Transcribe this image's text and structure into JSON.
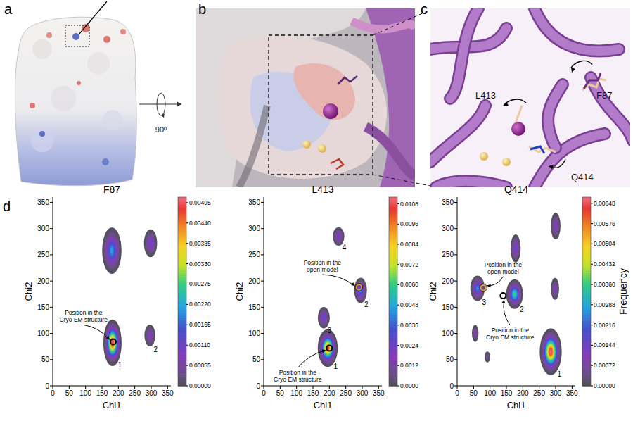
{
  "figure": {
    "panel_labels": [
      "a",
      "b",
      "c",
      "d"
    ],
    "residue_labels": [
      "F87",
      "L413",
      "Q414"
    ],
    "rotation_label": "90º"
  },
  "chart_data": [
    {
      "type": "density",
      "title": "F87",
      "x_label": "Chi1",
      "y_label": "Chi2",
      "xlim": [
        0,
        360
      ],
      "ylim": [
        0,
        360
      ],
      "xticks": [
        0,
        50,
        100,
        150,
        200,
        250,
        300,
        350
      ],
      "yticks": [
        0,
        50,
        100,
        150,
        200,
        250,
        300,
        350
      ],
      "clusters": [
        {
          "label": "1",
          "x": 182,
          "y": 82,
          "sx": 10,
          "sy": 16,
          "peak": 0.0049
        },
        {
          "label": null,
          "x": 180,
          "y": 258,
          "sx": 12,
          "sy": 18,
          "peak": 0.0021
        },
        {
          "label": null,
          "x": 298,
          "y": 272,
          "sx": 9,
          "sy": 12,
          "peak": 0.0012
        },
        {
          "label": "2",
          "x": 296,
          "y": 96,
          "sx": 8,
          "sy": 10,
          "peak": 0.0009
        }
      ],
      "points": [
        {
          "lines": [
            "Position in the",
            "Cryo EM structure"
          ],
          "x": 184,
          "y": 84,
          "color": "#000000"
        }
      ],
      "colorbar": {
        "range": [
          0,
          0.0051
        ],
        "ticks": [
          {
            "value": 0,
            "label": "0.00000"
          },
          {
            "value": 0.00055,
            "label": "0.00055"
          },
          {
            "value": 0.0011,
            "label": "0.00110"
          },
          {
            "value": 0.00165,
            "label": "0.00165"
          },
          {
            "value": 0.0022,
            "label": "0.00220"
          },
          {
            "value": 0.00275,
            "label": "0.00275"
          },
          {
            "value": 0.0033,
            "label": "0.00330"
          },
          {
            "value": 0.00385,
            "label": "0.00385"
          },
          {
            "value": 0.0044,
            "label": "0.00440"
          },
          {
            "value": 0.00495,
            "label": "0.00495"
          }
        ]
      }
    },
    {
      "type": "density",
      "title": "L413",
      "x_label": "Chi1",
      "y_label": "Chi2",
      "xlim": [
        0,
        360
      ],
      "ylim": [
        0,
        360
      ],
      "xticks": [
        0,
        50,
        100,
        150,
        200,
        250,
        300,
        350
      ],
      "yticks": [
        0,
        50,
        100,
        150,
        200,
        250,
        300,
        350
      ],
      "clusters": [
        {
          "label": "1",
          "x": 195,
          "y": 72,
          "sx": 11,
          "sy": 13,
          "peak": 0.0104
        },
        {
          "label": "2",
          "x": 295,
          "y": 182,
          "sx": 8,
          "sy": 10,
          "peak": 0.0042
        },
        {
          "label": "3",
          "x": 183,
          "y": 130,
          "sx": 8,
          "sy": 9,
          "peak": 0.003
        },
        {
          "label": "4",
          "x": 228,
          "y": 285,
          "sx": 8,
          "sy": 8,
          "peak": 0.0026
        }
      ],
      "points": [
        {
          "lines": [
            "Position in the",
            "Cryo EM structure"
          ],
          "x": 200,
          "y": 72,
          "color": "#000000"
        },
        {
          "lines": [
            "Position in the",
            "open model"
          ],
          "x": 290,
          "y": 188,
          "color": "#f0a030"
        }
      ],
      "colorbar": {
        "range": [
          0,
          0.0112
        ],
        "ticks": [
          {
            "value": 0,
            "label": "0.0000"
          },
          {
            "value": 0.0012,
            "label": "0.0012"
          },
          {
            "value": 0.0024,
            "label": "0.0024"
          },
          {
            "value": 0.0036,
            "label": "0.0036"
          },
          {
            "value": 0.0048,
            "label": "0.0048"
          },
          {
            "value": 0.006,
            "label": "0.0060"
          },
          {
            "value": 0.0072,
            "label": "0.0072"
          },
          {
            "value": 0.0084,
            "label": "0.0084"
          },
          {
            "value": 0.0096,
            "label": "0.0096"
          },
          {
            "value": 0.0108,
            "label": "0.0108"
          }
        ]
      }
    },
    {
      "type": "density",
      "title": "Q414",
      "x_label": "Chi1",
      "y_label": "Chi2",
      "xlim": [
        0,
        360
      ],
      "ylim": [
        0,
        360
      ],
      "xticks": [
        0,
        50,
        100,
        150,
        200,
        250,
        300,
        350
      ],
      "yticks": [
        0,
        50,
        100,
        150,
        200,
        250,
        300,
        350
      ],
      "clusters": [
        {
          "label": "1",
          "x": 285,
          "y": 65,
          "sx": 12,
          "sy": 16,
          "peak": 0.0066
        },
        {
          "label": "2",
          "x": 175,
          "y": 175,
          "sx": 10,
          "sy": 11,
          "peak": 0.0036
        },
        {
          "label": "3",
          "x": 62,
          "y": 186,
          "sx": 9,
          "sy": 10,
          "peak": 0.0026
        },
        {
          "label": null,
          "x": 178,
          "y": 262,
          "sx": 7,
          "sy": 12,
          "peak": 0.0016
        },
        {
          "label": null,
          "x": 300,
          "y": 305,
          "sx": 7,
          "sy": 12,
          "peak": 0.0013
        },
        {
          "label": null,
          "x": 298,
          "y": 185,
          "sx": 6,
          "sy": 10,
          "peak": 0.0012
        },
        {
          "label": null,
          "x": 55,
          "y": 100,
          "sx": 5,
          "sy": 8,
          "peak": 0.001
        },
        {
          "label": null,
          "x": 92,
          "y": 55,
          "sx": 5,
          "sy": 6,
          "peak": 0.0006
        }
      ],
      "points": [
        {
          "lines": [
            "Position in the",
            "open model"
          ],
          "x": 80,
          "y": 187,
          "color": "#f0a030"
        },
        {
          "lines": [
            "Position in the",
            "Cryo EM structure"
          ],
          "x": 140,
          "y": 172,
          "color": "#000000"
        }
      ],
      "colorbar": {
        "label": "Frequency",
        "range": [
          0,
          0.0067
        ],
        "ticks": [
          {
            "value": 0,
            "label": "0.00000"
          },
          {
            "value": 0.00072,
            "label": "0.00072"
          },
          {
            "value": 0.00144,
            "label": "0.00144"
          },
          {
            "value": 0.00216,
            "label": "0.00216"
          },
          {
            "value": 0.00288,
            "label": "0.00288"
          },
          {
            "value": 0.0036,
            "label": "0.00360"
          },
          {
            "value": 0.00432,
            "label": "0.00432"
          },
          {
            "value": 0.00504,
            "label": "0.00504"
          },
          {
            "value": 0.00576,
            "label": "0.00576"
          },
          {
            "value": 0.00648,
            "label": "0.00648"
          }
        ]
      }
    }
  ]
}
